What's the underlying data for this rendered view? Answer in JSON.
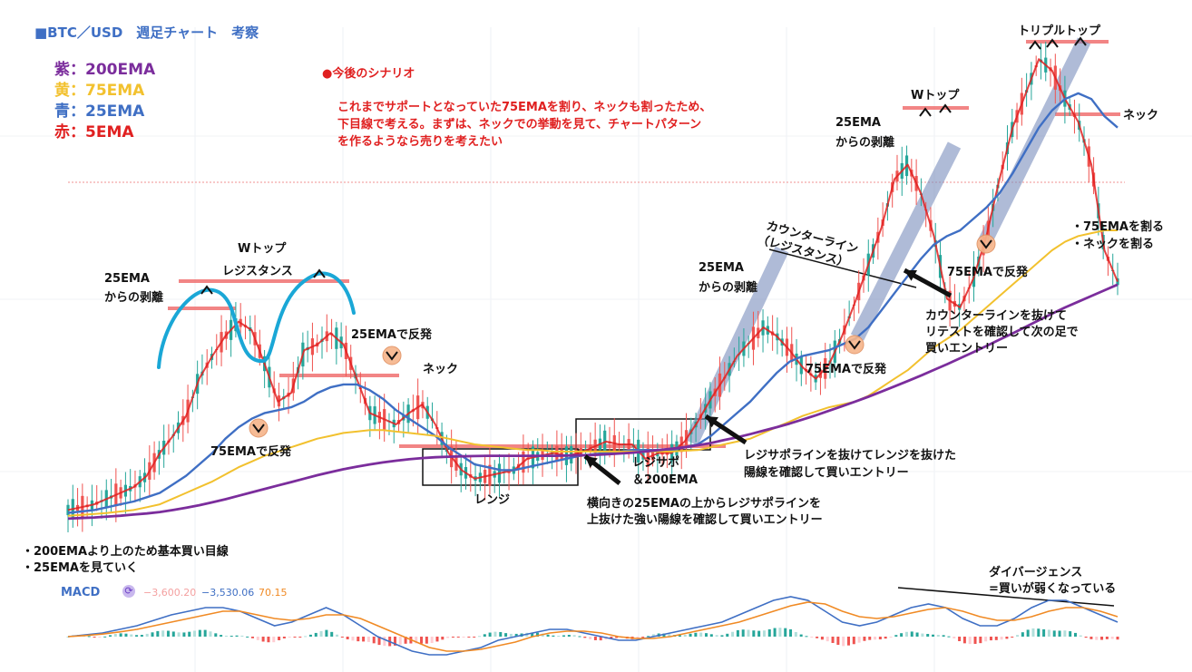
{
  "header": {
    "title": "■BTC／USD　週足チャート　考察",
    "title_color": "#3f6fc4"
  },
  "legend": [
    {
      "text": "紫：200EMA",
      "color": "#7b2d9c"
    },
    {
      "text": "黄：75EMA",
      "color": "#f2c12e"
    },
    {
      "text": "青：25EMA",
      "color": "#3f6fc4"
    },
    {
      "text": "赤：5EMA",
      "color": "#e02020"
    }
  ],
  "scenario": {
    "heading": "●今後のシナリオ",
    "lines": [
      "これまでサポートとなっていた75EMAを割り、ネックも割ったため、",
      "下目線で考える。まずは、ネックでの挙動を見て、チャートパターン",
      "を作るようなら売りを考えたい"
    ],
    "color": "#e02020"
  },
  "annotations": {
    "w_top_1": "Wトップ",
    "resistance": "レジスタンス",
    "ema25_gap_1a": "25EMA",
    "ema25_gap_1b": "からの剥離",
    "ema25_bounce": "25EMAで反発",
    "neck_1": "ネック",
    "ema75_bounce_1": "75EMAで反発",
    "range": "レンジ",
    "regi_sapo_a": "レジサポ",
    "regi_sapo_b": "＆200EMA",
    "entry_1a": "横向きの25EMAの上からレジサポラインを",
    "entry_1b": "上抜けた強い陽線を確認して買いエントリー",
    "entry_2a": "レジサポラインを抜けてレンジを抜けた",
    "entry_2b": "陽線を確認して買いエントリー",
    "ema25_gap_2a": "25EMA",
    "ema25_gap_2b": "からの剥離",
    "counter_line_a": "カウンターライン",
    "counter_line_b": "（レジスタンス）",
    "entry_3a": "カウンターラインを抜けて",
    "entry_3b": "リテストを確認して次の足で",
    "entry_3c": "買いエントリー",
    "ema75_bounce_2": "75EMAで反発",
    "ema25_gap_3a": "25EMA",
    "ema25_gap_3b": "からの剥離",
    "w_top_2": "Wトップ",
    "ema75_bounce_3": "75EMAで反発",
    "triple_top": "トリプルトップ",
    "neck_2": "ネック",
    "break_75": "・75EMAを割る",
    "break_neck": "・ネックを割る",
    "bottom_note_1": "・200EMAより上のため基本買い目線",
    "bottom_note_2": "・25EMAを見ていく",
    "divergence_a": "ダイバージェンス",
    "divergence_b": "=買いが弱くなっている"
  },
  "macd": {
    "label": "MACD",
    "value_1": "−3,600.20",
    "value_2": "−3,530.06",
    "value_3": "70.15",
    "color_1": "#f4a0a0",
    "color_2": "#3f6fc4",
    "color_3": "#f08a24"
  },
  "chart_data": {
    "type": "line",
    "title": "■BTC／USD　週足チャート　考察",
    "xlabel": "",
    "ylabel": "",
    "x": [
      0,
      2,
      4,
      6,
      8,
      10,
      12,
      14,
      16,
      18,
      20,
      22,
      24,
      26,
      28,
      30,
      32,
      34,
      36,
      38,
      40,
      42,
      44,
      46,
      48,
      50,
      52,
      54,
      56,
      58,
      60,
      62,
      64,
      66,
      68,
      70,
      72,
      74,
      76,
      78,
      80,
      82,
      84,
      86,
      88,
      90,
      92,
      94,
      96,
      98,
      100,
      102,
      104,
      106,
      108,
      110,
      112,
      114,
      116,
      118,
      120,
      122,
      124,
      126,
      128,
      130,
      132,
      134,
      136,
      138,
      140,
      142,
      144,
      146,
      148,
      150,
      152,
      154,
      156,
      158,
      160
    ],
    "series": [
      {
        "name": "5EMA",
        "color": "#e02020",
        "values": [
          4,
          5,
          6,
          8,
          10,
          12,
          16,
          24,
          30,
          37,
          50,
          58,
          65,
          70,
          67,
          55,
          42,
          45,
          60,
          62,
          66,
          62,
          50,
          38,
          36,
          34,
          38,
          41,
          34,
          24,
          18,
          15,
          16,
          17,
          18,
          22,
          23,
          24,
          23,
          24,
          26,
          28,
          27,
          27,
          22,
          24,
          24,
          28,
          35,
          43,
          50,
          58,
          63,
          68,
          65,
          60,
          54,
          50,
          55,
          65,
          77,
          90,
          103,
          120,
          125,
          115,
          100,
          78,
          75,
          85,
          100,
          120,
          138,
          150,
          162,
          158,
          148,
          140,
          125,
          95,
          84
        ]
      },
      {
        "name": "25EMA",
        "color": "#3f6fc4",
        "values": [
          3,
          3.5,
          4,
          5,
          6,
          7,
          8.5,
          10,
          13,
          16,
          20,
          24,
          29,
          33,
          36,
          38,
          39,
          40,
          42,
          45,
          47,
          48,
          48,
          46,
          43,
          39,
          36,
          33,
          30,
          26,
          23,
          20,
          19,
          18,
          18,
          19,
          20,
          21,
          22,
          23,
          23.5,
          24,
          24.5,
          25,
          25,
          25,
          25,
          26,
          27,
          30,
          34,
          38,
          42,
          47,
          52,
          56,
          58,
          59,
          60,
          62,
          64,
          68,
          74,
          80,
          86,
          92,
          97,
          100,
          102,
          106,
          110,
          115,
          122,
          130,
          138,
          144,
          148,
          150,
          148,
          142,
          138
        ]
      },
      {
        "name": "75EMA",
        "color": "#f2c12e",
        "values": [
          2,
          2.3,
          2.6,
          3,
          3.5,
          4,
          5,
          6,
          8,
          10,
          12,
          14,
          16.5,
          19,
          21,
          23,
          24.5,
          26,
          27.5,
          29,
          30,
          31,
          31.5,
          32,
          32,
          31.5,
          31,
          30.5,
          30,
          29,
          28,
          27,
          26.5,
          26,
          25.5,
          25,
          25,
          24.5,
          24.5,
          24.5,
          24.5,
          24.5,
          24.5,
          24.5,
          24.5,
          24.5,
          24.5,
          24.8,
          25,
          26,
          27,
          28,
          29,
          31,
          33,
          35,
          37,
          38.5,
          40,
          41,
          42,
          44,
          47,
          50,
          53,
          57,
          61,
          64,
          67,
          71,
          75,
          79,
          83,
          87,
          91,
          95,
          98,
          100,
          101,
          102,
          102
        ]
      },
      {
        "name": "200EMA",
        "color": "#7b2d9c",
        "values": [
          1,
          1.2,
          1.4,
          1.7,
          2,
          2.4,
          2.8,
          3.3,
          4,
          4.8,
          5.7,
          6.7,
          7.8,
          9,
          10.2,
          11.4,
          12.6,
          13.8,
          15,
          16.2,
          17.3,
          18.3,
          19.2,
          20,
          20.7,
          21.3,
          21.8,
          22.2,
          22.5,
          22.7,
          22.8,
          22.9,
          23,
          23,
          23,
          23,
          23,
          23,
          23.1,
          23.2,
          23.3,
          23.5,
          23.8,
          24.1,
          24.5,
          25,
          25.5,
          26,
          26.7,
          27.5,
          28.5,
          29.5,
          30.6,
          31.8,
          33,
          34.3,
          35.7,
          37.2,
          38.8,
          40.4,
          42,
          43.7,
          45.5,
          47.3,
          49.2,
          51.1,
          53.1,
          55.1,
          57.2,
          59.3,
          61.5,
          63.7,
          65.9,
          68.2,
          70.5,
          72.8,
          75,
          77,
          79,
          81,
          83
        ]
      }
    ],
    "macd_series": [
      {
        "name": "MACD",
        "color": "#3f6fc4",
        "values": [
          0,
          0.5,
          1,
          2,
          3,
          4.5,
          6,
          7,
          8,
          8,
          7,
          5,
          3,
          4,
          6,
          8,
          6,
          3,
          0,
          -2,
          -4,
          -5,
          -5,
          -4,
          -3,
          -1,
          0,
          1,
          2,
          2,
          1,
          0,
          -1,
          -1,
          0,
          1,
          2,
          3,
          4,
          6,
          8,
          10,
          11,
          10,
          7,
          4,
          3,
          4,
          6,
          8,
          9,
          8,
          5,
          3,
          3,
          5,
          8,
          10,
          10,
          8,
          6,
          4
        ]
      },
      {
        "name": "Signal",
        "color": "#f08a24",
        "values": [
          0,
          0.3,
          0.7,
          1.3,
          2,
          3,
          4,
          5,
          6,
          7,
          7,
          6,
          5,
          4.5,
          5,
          6,
          6,
          5,
          3,
          1,
          -1,
          -3,
          -4,
          -4,
          -3.5,
          -2.5,
          -1.5,
          0,
          1,
          1.5,
          1.5,
          1,
          0,
          -0.5,
          -0.5,
          0,
          1,
          2,
          3,
          4,
          5.5,
          7,
          8.5,
          9.5,
          9,
          7,
          5.5,
          5,
          5.5,
          6.5,
          7.5,
          8,
          7,
          5.5,
          4.5,
          4.5,
          5.5,
          7,
          8,
          8,
          7,
          5.5
        ]
      }
    ]
  }
}
